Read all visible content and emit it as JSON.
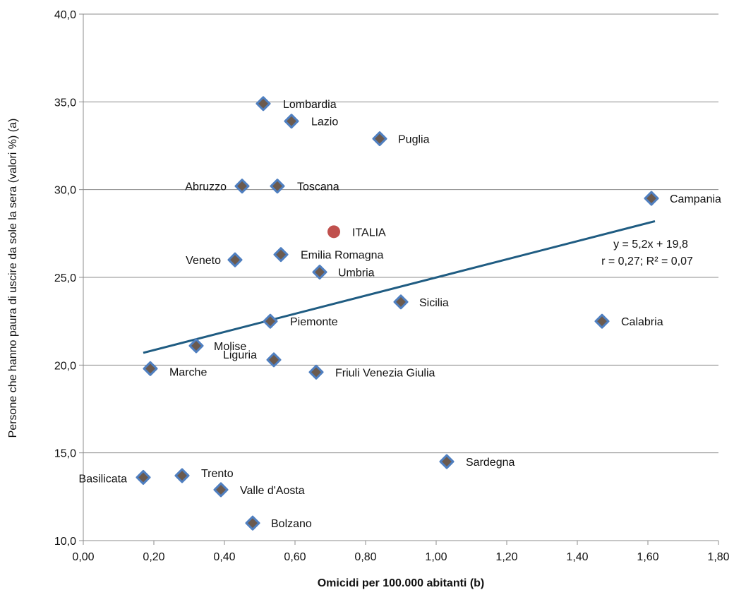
{
  "chart_data": {
    "type": "scatter",
    "xlabel": "Omicidi per 100.000 abitanti (b)",
    "ylabel": "Persone che hanno paura di uscire da sole la sera (valori %) (a)",
    "xlim": [
      0,
      1.8
    ],
    "ylim": [
      10,
      40
    ],
    "x_ticks": [
      0,
      0.2,
      0.4,
      0.6,
      0.8,
      1.0,
      1.2,
      1.4,
      1.6,
      1.8
    ],
    "x_tick_labels": [
      "0,00",
      "0,20",
      "0,40",
      "0,60",
      "0,80",
      "1,00",
      "1,20",
      "1,40",
      "1,60",
      "1,80"
    ],
    "y_ticks": [
      10,
      15,
      20,
      25,
      30,
      35,
      40
    ],
    "y_tick_labels": [
      "10,0",
      "15,0",
      "20,0",
      "25,0",
      "30,0",
      "35,0",
      "40,0"
    ],
    "grid": "horizontal",
    "marker_color": "#4f7fc0",
    "marker_inner_color": "#6b5a4e",
    "highlight_color": "#c0504d",
    "trend_color": "#1f5c82",
    "points": [
      {
        "name": "Lombardia",
        "x": 0.51,
        "y": 34.9
      },
      {
        "name": "Lazio",
        "x": 0.59,
        "y": 33.9
      },
      {
        "name": "Puglia",
        "x": 0.84,
        "y": 32.9
      },
      {
        "name": "Abruzzo",
        "x": 0.45,
        "y": 30.2
      },
      {
        "name": "Toscana",
        "x": 0.55,
        "y": 30.2
      },
      {
        "name": "Campania",
        "x": 1.61,
        "y": 29.5
      },
      {
        "name": "Emilia Romagna",
        "x": 0.56,
        "y": 26.3
      },
      {
        "name": "Veneto",
        "x": 0.43,
        "y": 26.0
      },
      {
        "name": "Umbria",
        "x": 0.67,
        "y": 25.3
      },
      {
        "name": "Sicilia",
        "x": 0.9,
        "y": 23.6
      },
      {
        "name": "Piemonte",
        "x": 0.53,
        "y": 22.5
      },
      {
        "name": "Calabria",
        "x": 1.47,
        "y": 22.5
      },
      {
        "name": "Molise",
        "x": 0.32,
        "y": 21.1
      },
      {
        "name": "Liguria",
        "x": 0.54,
        "y": 20.3
      },
      {
        "name": "Marche",
        "x": 0.19,
        "y": 19.8
      },
      {
        "name": "Friuli Venezia Giulia",
        "x": 0.66,
        "y": 19.6
      },
      {
        "name": "Sardegna",
        "x": 1.03,
        "y": 14.5
      },
      {
        "name": "Basilicata",
        "x": 0.17,
        "y": 13.6
      },
      {
        "name": "Trento",
        "x": 0.28,
        "y": 13.7
      },
      {
        "name": "Valle d'Aosta",
        "x": 0.39,
        "y": 12.9
      },
      {
        "name": "Bolzano",
        "x": 0.48,
        "y": 11.0
      }
    ],
    "highlight": {
      "name": "ITALIA",
      "x": 0.71,
      "y": 27.6
    },
    "trendline": {
      "x": [
        0.17,
        1.62
      ],
      "y": [
        20.7,
        28.2
      ]
    },
    "annotations": [
      "y = 5,2x + 19,8",
      "r = 0,27;  R² = 0,07"
    ]
  }
}
